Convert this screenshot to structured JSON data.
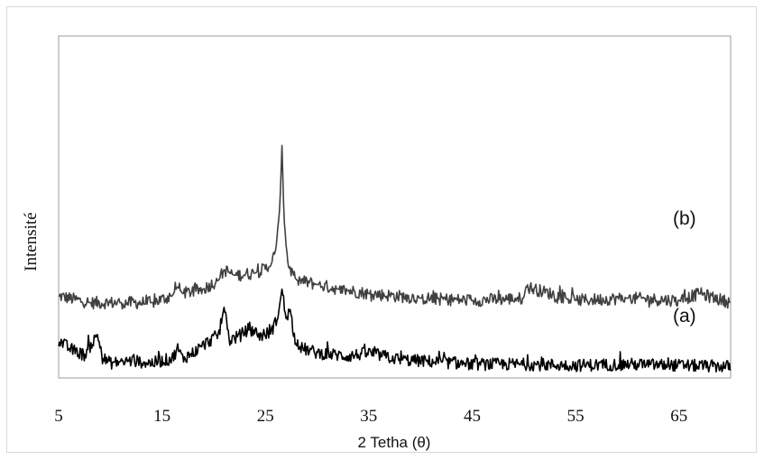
{
  "chart_data": {
    "type": "line",
    "xlabel": "2 Tetha (θ)",
    "ylabel": "Intensité",
    "xlim": [
      5,
      70
    ],
    "xticks": [
      5,
      15,
      25,
      35,
      45,
      55,
      65
    ],
    "xtick_labels": [
      "5",
      "15",
      "25",
      "35",
      "45",
      "55",
      "65"
    ],
    "y_ticks_shown": false,
    "grid": false,
    "ylim": [
      0,
      3
    ],
    "series": [
      {
        "name": "(b)",
        "color": "#404040",
        "x": [
          5,
          8,
          11,
          14,
          16,
          16.5,
          17,
          19,
          20.5,
          21,
          22,
          24,
          25.5,
          26,
          26.4,
          26.6,
          26.8,
          27.2,
          28,
          30,
          32,
          35,
          40,
          45,
          50,
          50.2,
          55,
          60,
          65,
          67,
          70
        ],
        "y": [
          0.72,
          0.66,
          0.66,
          0.66,
          0.72,
          0.8,
          0.74,
          0.78,
          0.86,
          0.95,
          0.9,
          0.92,
          0.98,
          1.12,
          1.5,
          2.04,
          1.4,
          0.98,
          0.86,
          0.82,
          0.78,
          0.74,
          0.7,
          0.68,
          0.7,
          0.8,
          0.68,
          0.7,
          0.68,
          0.74,
          0.66
        ]
      },
      {
        "name": "(a)",
        "color": "#000000",
        "x": [
          5,
          6,
          7.5,
          8.8,
          9.2,
          10,
          12,
          14,
          16,
          16.5,
          17,
          18,
          19.5,
          20.5,
          21,
          21.5,
          22.5,
          23.5,
          24.5,
          25.5,
          26.2,
          26.6,
          27,
          27.4,
          27.8,
          28.5,
          30,
          33,
          35,
          38,
          40,
          45,
          50,
          55,
          60,
          65,
          70
        ],
        "y": [
          0.33,
          0.26,
          0.2,
          0.38,
          0.18,
          0.13,
          0.15,
          0.13,
          0.17,
          0.26,
          0.17,
          0.22,
          0.32,
          0.38,
          0.62,
          0.33,
          0.37,
          0.44,
          0.37,
          0.4,
          0.52,
          0.78,
          0.52,
          0.6,
          0.36,
          0.26,
          0.22,
          0.19,
          0.22,
          0.16,
          0.15,
          0.12,
          0.12,
          0.11,
          0.12,
          0.11,
          0.1
        ]
      }
    ]
  }
}
